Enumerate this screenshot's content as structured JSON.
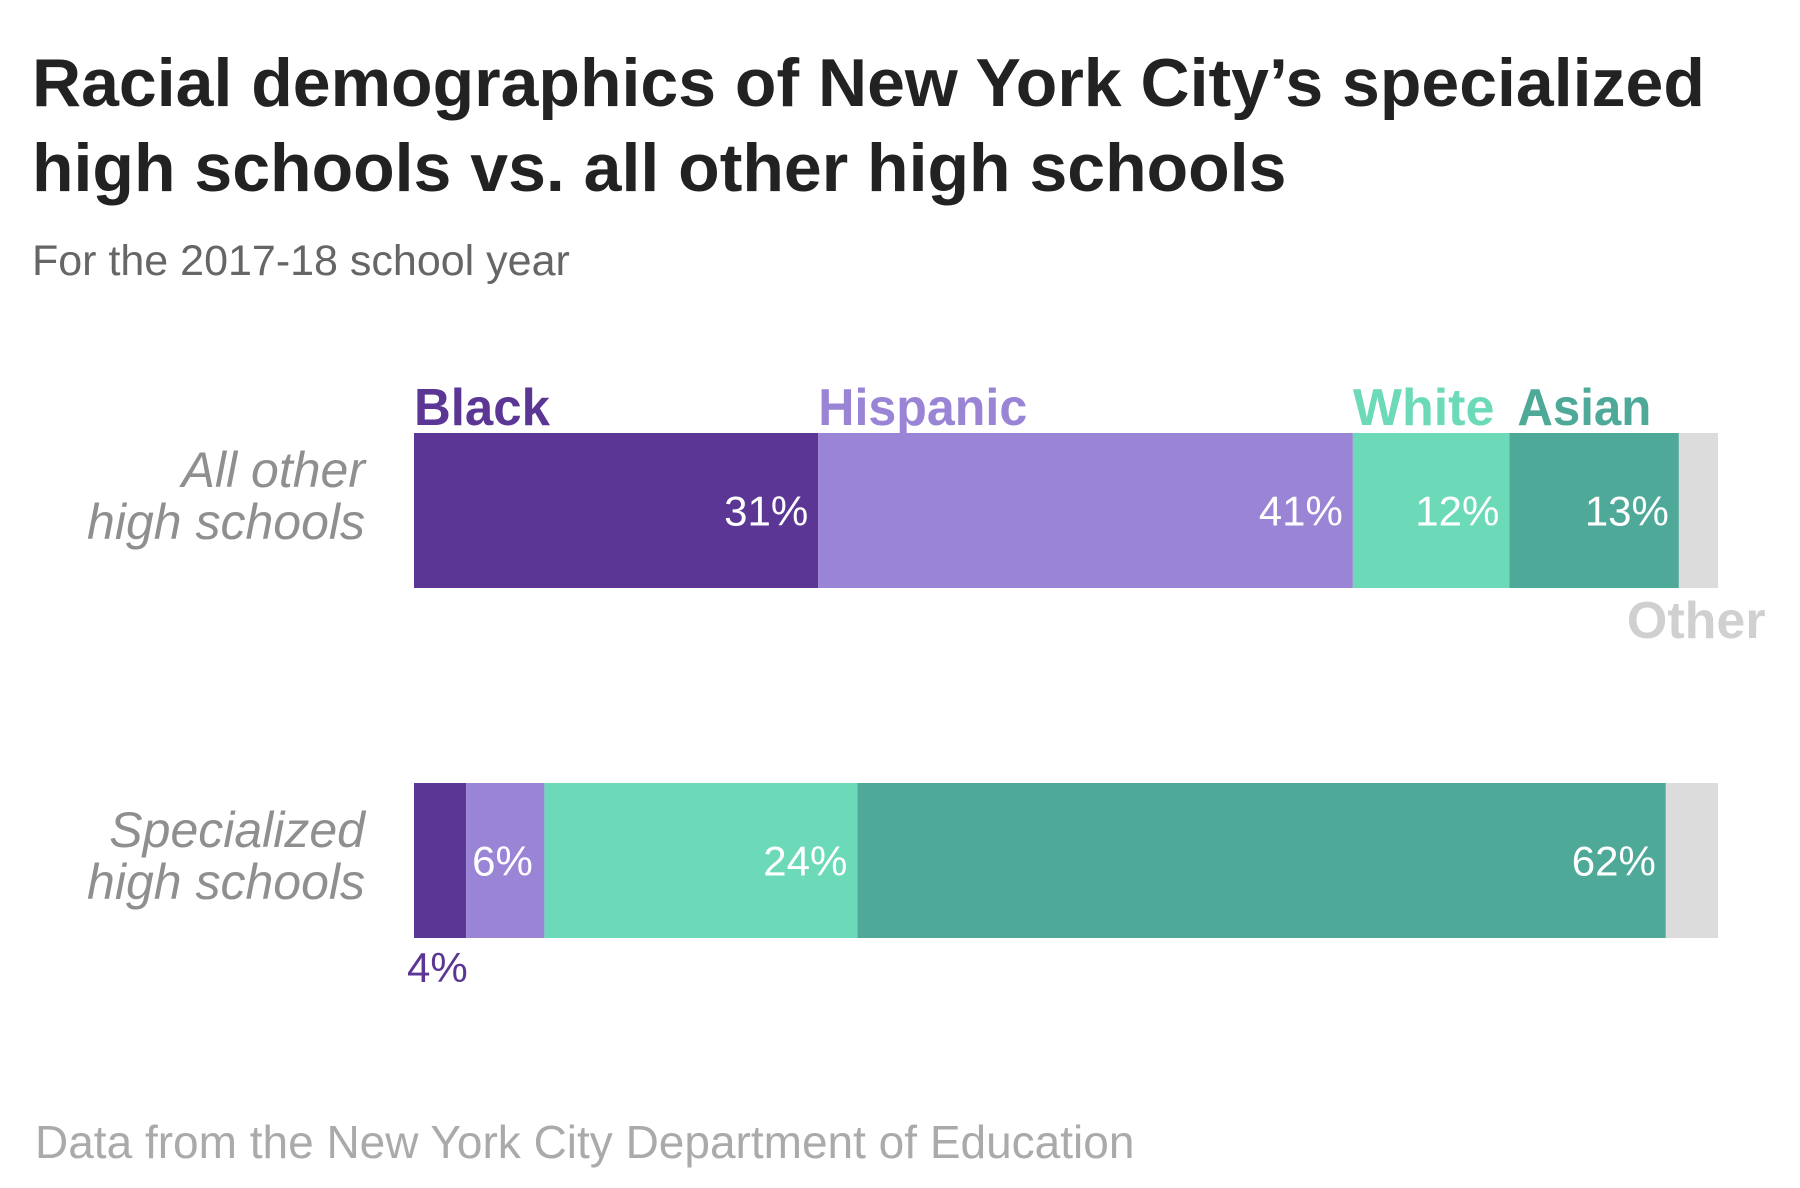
{
  "colors": {
    "Black": "#5b3694",
    "Hispanic": "#9a84d5",
    "White": "#6cd9b9",
    "Asian": "#4fa999",
    "Other": "#dcdcdc",
    "title": "#222222",
    "row_label": "#8f8f8f"
  },
  "chart_data": {
    "type": "bar",
    "orientation": "horizontal",
    "stacked": true,
    "title": "Racial demographics of New York City’s specialized high schools vs. all other high schools",
    "title_lines": [
      "Racial demographics of New York City’s specialized",
      "high schools vs. all other high schools"
    ],
    "subtitle": "For the 2017-18 school year",
    "source": "Data from the New York City Department of Education",
    "xlim": [
      0,
      100
    ],
    "categories": [
      "All other high schools",
      "Specialized high schools"
    ],
    "category_lines": [
      [
        "All other",
        "high schools"
      ],
      [
        "Specialized",
        "high schools"
      ]
    ],
    "series": [
      {
        "name": "Black",
        "values": [
          31,
          4
        ],
        "labels": [
          "31%",
          "4%"
        ]
      },
      {
        "name": "Hispanic",
        "values": [
          41,
          6
        ],
        "labels": [
          "41%",
          "6%"
        ]
      },
      {
        "name": "White",
        "values": [
          12,
          24
        ],
        "labels": [
          "12%",
          "24%"
        ]
      },
      {
        "name": "Asian",
        "values": [
          13,
          62
        ],
        "labels": [
          "13%",
          "62%"
        ]
      },
      {
        "name": "Other",
        "values": [
          3,
          4
        ],
        "labels": [
          "",
          ""
        ]
      }
    ],
    "legend": "inline-above-first-bar"
  }
}
